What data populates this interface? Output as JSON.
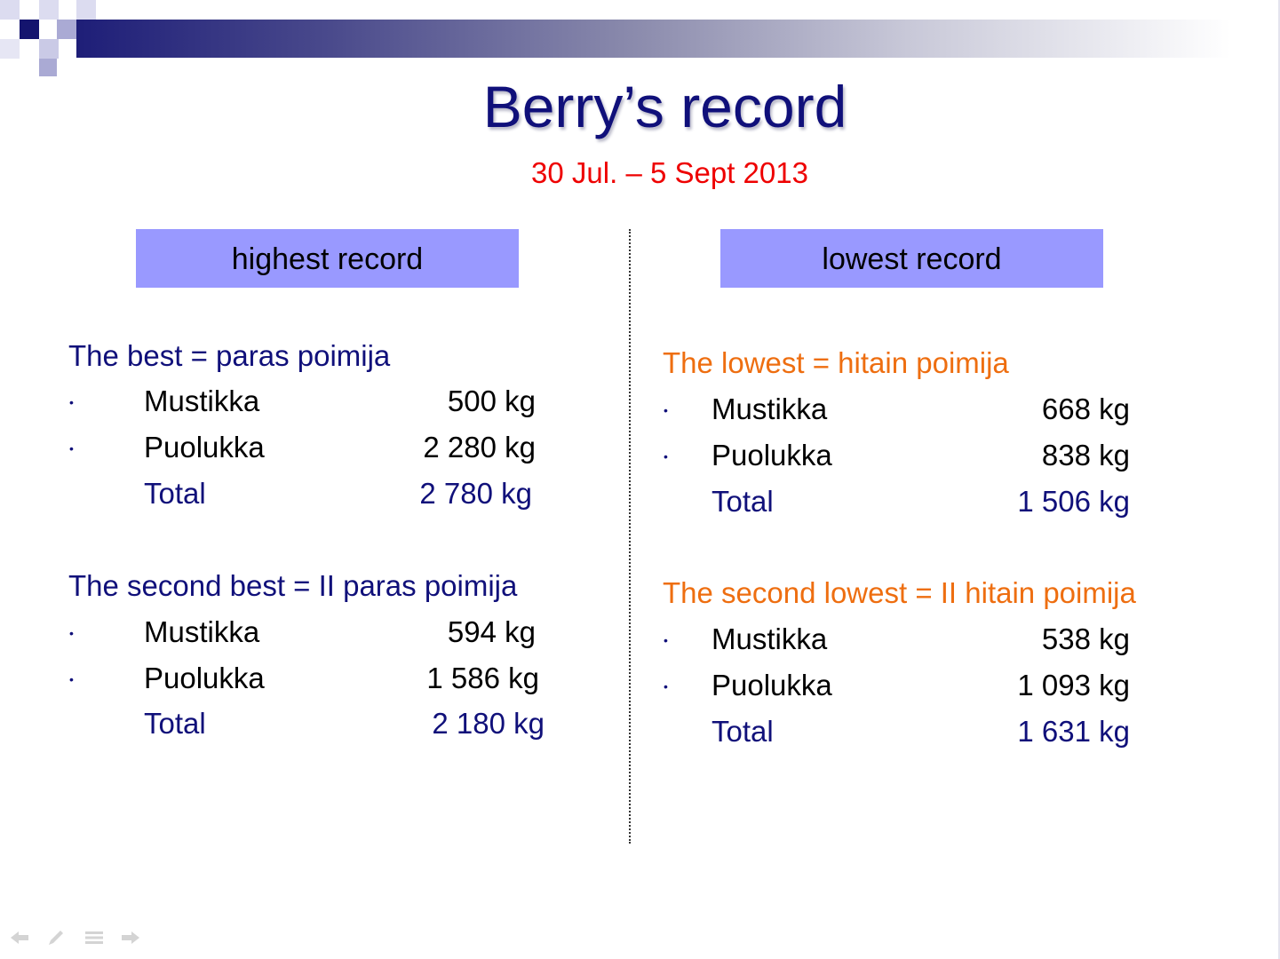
{
  "slide": {
    "title": "Berry’s record",
    "subtitle": "30 Jul. – 5 Sept 2013"
  },
  "left": {
    "header": "highest record",
    "groups": [
      {
        "title": "The best = paras poimija",
        "rows": [
          {
            "label": "Mustikka",
            "value": "500 kg"
          },
          {
            "label": "Puolukka",
            "value": "2 280 kg"
          }
        ],
        "total_label": "Total",
        "total_value": "2 780 kg"
      },
      {
        "title": "The second best = II paras poimija",
        "rows": [
          {
            "label": "Mustikka",
            "value": "594 kg"
          },
          {
            "label": "Puolukka",
            "value": "1 586 kg"
          }
        ],
        "total_label": "Total",
        "total_value": "2 180 kg"
      }
    ]
  },
  "right": {
    "header": "lowest record",
    "groups": [
      {
        "title": "The lowest = hitain poimija",
        "rows": [
          {
            "label": "Mustikka",
            "value": "668 kg"
          },
          {
            "label": "Puolukka",
            "value": "838 kg"
          }
        ],
        "total_label": "Total",
        "total_value": "1 506 kg"
      },
      {
        "title": "The second lowest = II hitain poimija",
        "rows": [
          {
            "label": "Mustikka",
            "value": "538 kg"
          },
          {
            "label": "Puolukka",
            "value": "1 093 kg"
          }
        ],
        "total_label": "Total",
        "total_value": "1 631 kg"
      }
    ]
  },
  "colors": {
    "title": "#10107a",
    "subtitle": "#ee0000",
    "header_box": "#9999ff",
    "orange_heading": "#ee6e10"
  },
  "icons": [
    "previous-slide-icon",
    "pen-icon",
    "menu-icon",
    "next-slide-icon"
  ]
}
